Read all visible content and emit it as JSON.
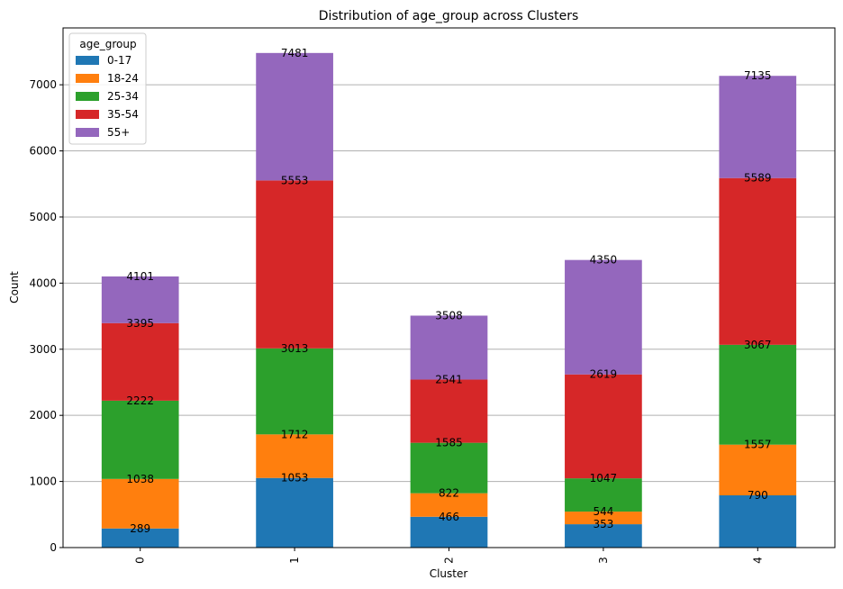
{
  "chart_data": {
    "type": "bar",
    "stacked": true,
    "title": "Distribution of age_group across Clusters",
    "xlabel": "Cluster",
    "ylabel": "Count",
    "categories": [
      "0",
      "1",
      "2",
      "3",
      "4"
    ],
    "ylim": [
      0,
      7860
    ],
    "yticks": [
      0,
      1000,
      2000,
      3000,
      4000,
      5000,
      6000,
      7000
    ],
    "grid": "y",
    "legend": {
      "title": "age_group",
      "placement": "top-left"
    },
    "series": [
      {
        "name": "0-17",
        "color": "#1f77b4",
        "values": [
          289,
          1053,
          466,
          353,
          790
        ]
      },
      {
        "name": "18-24",
        "color": "#ff7f0e",
        "values": [
          749,
          659,
          356,
          191,
          767
        ]
      },
      {
        "name": "25-34",
        "color": "#2ca02c",
        "values": [
          1184,
          1301,
          763,
          503,
          1510
        ]
      },
      {
        "name": "35-54",
        "color": "#d62728",
        "values": [
          1173,
          2540,
          956,
          1572,
          2522
        ]
      },
      {
        "name": "55+",
        "color": "#9467bd",
        "values": [
          706,
          1928,
          967,
          1731,
          1546
        ]
      }
    ],
    "cumulative_labels": [
      [
        "289",
        "1038",
        "2222",
        "3395",
        "4101"
      ],
      [
        "1053",
        "1712",
        "3013",
        "5553",
        "7481"
      ],
      [
        "466",
        "822",
        "1585",
        "2541",
        "3508"
      ],
      [
        "353",
        "544",
        "1047",
        "2619",
        "4350"
      ],
      [
        "790",
        "1557",
        "3067",
        "5589",
        "7135"
      ]
    ]
  }
}
